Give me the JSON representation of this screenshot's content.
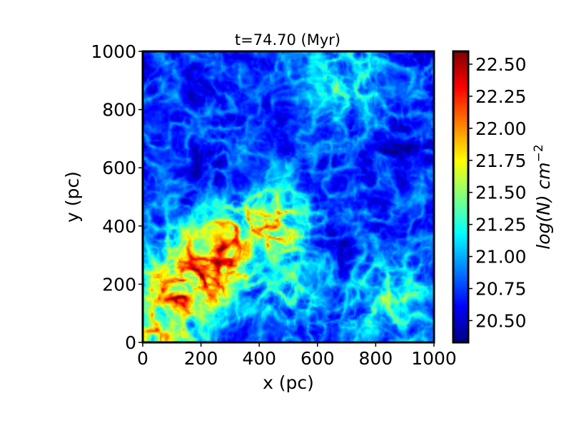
{
  "chart_data": {
    "type": "heatmap",
    "title": "t=74.70 (Myr)",
    "xlabel": "x (pc)",
    "ylabel": "y (pc)",
    "xlim": [
      0,
      1000
    ],
    "ylim": [
      0,
      1000
    ],
    "xticks": [
      "0",
      "200",
      "400",
      "600",
      "800",
      "1000"
    ],
    "yticks": [
      "0",
      "200",
      "400",
      "600",
      "800",
      "1000"
    ],
    "colorbar": {
      "label": "log(N) cm",
      "label_exponent": "−2",
      "range": [
        20.33,
        22.6
      ],
      "ticks": [
        "20.50",
        "20.75",
        "21.00",
        "21.25",
        "21.50",
        "21.75",
        "22.00",
        "22.25",
        "22.50"
      ],
      "colormap": "jet"
    },
    "colormap_stops": [
      "#000080",
      "#0000ff",
      "#0080ff",
      "#00ffff",
      "#80ff80",
      "#ffff00",
      "#ff8000",
      "#ff0000",
      "#800000"
    ],
    "grid": false,
    "structure": {
      "background_level": 20.72,
      "dense_regions": [
        {
          "x": 200,
          "y": 250,
          "peak": 22.35
        },
        {
          "x": 130,
          "y": 180,
          "peak": 22.1
        },
        {
          "x": 300,
          "y": 320,
          "peak": 22.2
        },
        {
          "x": 420,
          "y": 400,
          "peak": 21.9
        },
        {
          "x": 60,
          "y": 60,
          "peak": 21.8
        },
        {
          "x": 500,
          "y": 200,
          "peak": 21.3
        },
        {
          "x": 850,
          "y": 150,
          "peak": 21.3
        },
        {
          "x": 700,
          "y": 900,
          "peak": 21.2
        }
      ],
      "voids": [
        {
          "x": 230,
          "y": 580,
          "level": 20.5
        },
        {
          "x": 450,
          "y": 750,
          "level": 20.55
        },
        {
          "x": 650,
          "y": 350,
          "level": 20.55
        },
        {
          "x": 900,
          "y": 650,
          "level": 20.5
        },
        {
          "x": 550,
          "y": 100,
          "level": 20.6
        },
        {
          "x": 250,
          "y": 900,
          "level": 20.6
        }
      ]
    }
  }
}
